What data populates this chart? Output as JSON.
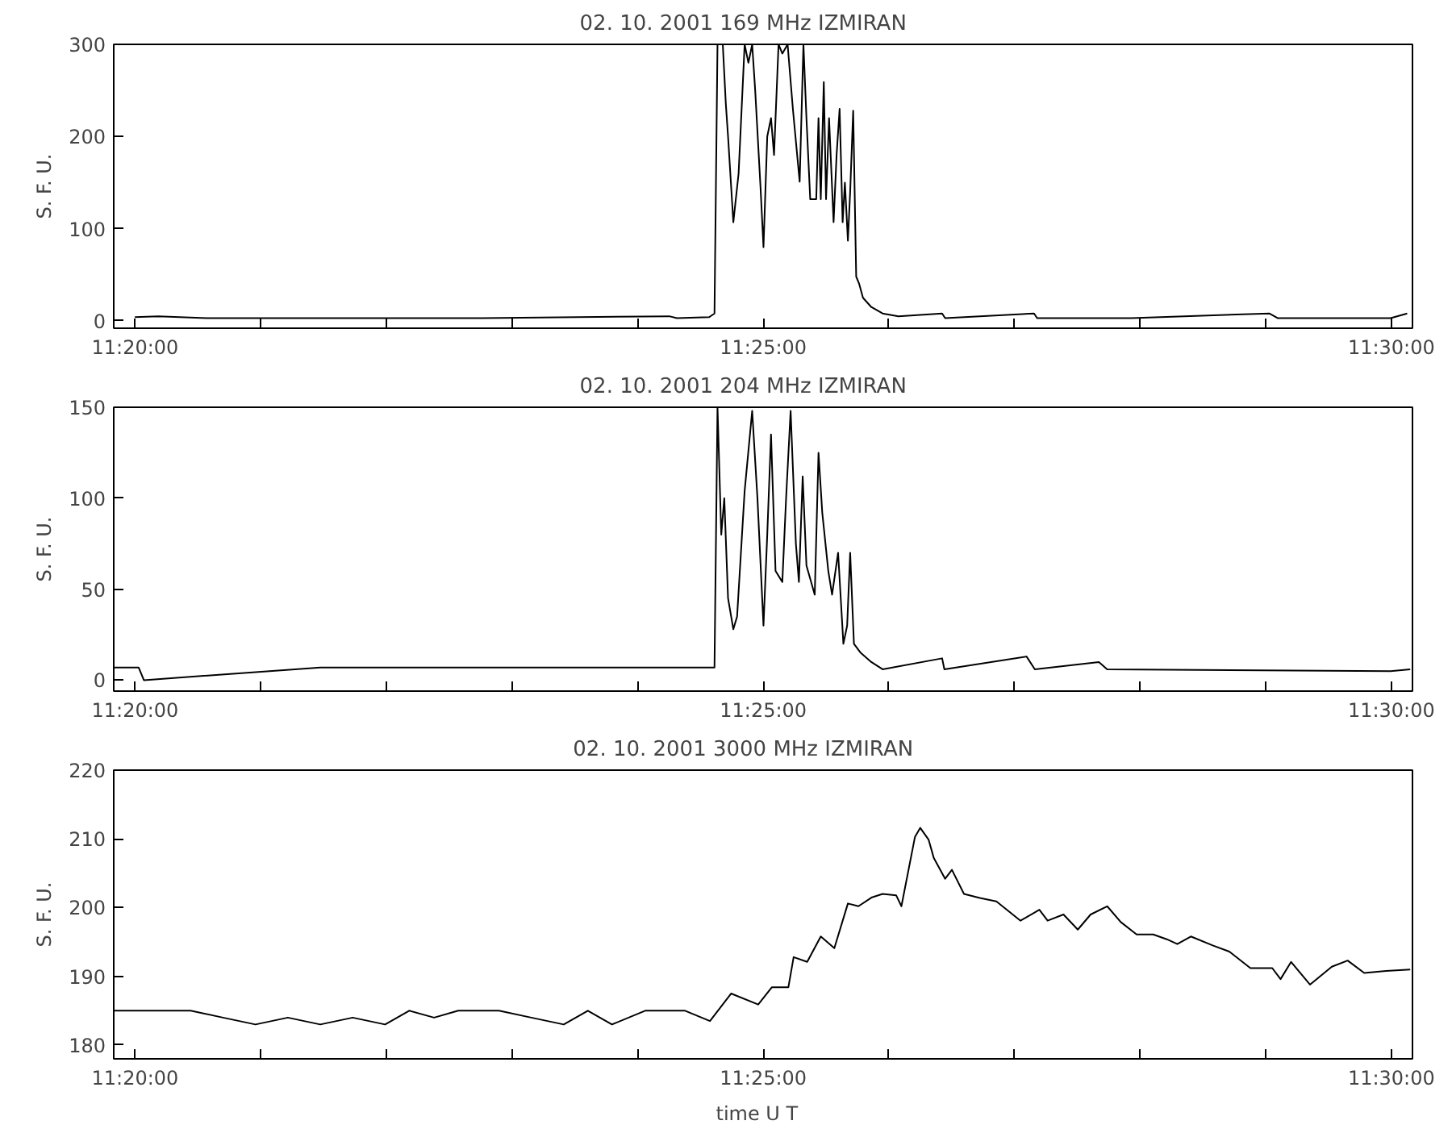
{
  "chart_data": [
    {
      "type": "line",
      "title": "02. 10. 2001    169 MHz    IZMIRAN",
      "ylabel": "S. F. U.",
      "xlim": [
        11.3305,
        11.5028
      ],
      "ylim": [
        -8,
        300
      ],
      "xticks": [
        {
          "value": 11.33333,
          "label": "11:20:00"
        },
        {
          "value": 11.35,
          "label": null
        },
        {
          "value": 11.36667,
          "label": null
        },
        {
          "value": 11.38333,
          "label": null
        },
        {
          "value": 11.4,
          "label": null
        },
        {
          "value": 11.41667,
          "label": "11:25:00"
        },
        {
          "value": 11.43333,
          "label": null
        },
        {
          "value": 11.45,
          "label": null
        },
        {
          "value": 11.46667,
          "label": null
        },
        {
          "value": 11.48333,
          "label": null
        },
        {
          "value": 11.5,
          "label": "11:30:00"
        }
      ],
      "yticks": [
        0,
        100,
        200,
        300
      ],
      "x": [
        11.3333,
        11.3364,
        11.3428,
        11.3579,
        11.3794,
        11.4042,
        11.4052,
        11.4095,
        11.4102,
        11.4106,
        11.4113,
        11.4117,
        11.412,
        11.4127,
        11.4134,
        11.4142,
        11.4147,
        11.4152,
        11.4156,
        11.4163,
        11.4167,
        11.4172,
        11.4177,
        11.4181,
        11.4187,
        11.4192,
        11.4199,
        11.4206,
        11.4215,
        11.422,
        11.4224,
        11.4229,
        11.4237,
        11.424,
        11.4243,
        11.4247,
        11.425,
        11.4254,
        11.426,
        11.4264,
        11.4268,
        11.4272,
        11.4275,
        11.4279,
        11.4282,
        11.4286,
        11.429,
        11.4294,
        11.4299,
        11.431,
        11.4325,
        11.4346,
        11.4404,
        11.4408,
        11.4526,
        11.453,
        11.4655,
        11.4838,
        11.4849,
        11.4999,
        11.5021
      ],
      "series": [
        {
          "color": "#000000",
          "values": [
            4,
            5,
            3,
            3,
            3,
            5,
            3,
            4,
            8,
            300,
            300,
            236,
            200,
            107,
            160,
            300,
            280,
            300,
            250,
            146,
            80,
            200,
            220,
            180,
            300,
            290,
            300,
            230,
            151,
            300,
            220,
            132,
            132,
            220,
            132,
            259,
            132,
            220,
            107,
            180,
            230,
            107,
            150,
            87,
            140,
            228,
            48,
            40,
            25,
            15,
            8,
            5,
            8,
            3,
            8,
            3,
            3,
            8,
            3,
            3,
            8
          ]
        }
      ]
    },
    {
      "type": "line",
      "title": "02. 10. 2001    204 MHz    IZMIRAN",
      "ylabel": "S. F. U.",
      "xlim": [
        11.3305,
        11.5028
      ],
      "ylim": [
        -6,
        150
      ],
      "xticks": [
        {
          "value": 11.33333,
          "label": "11:20:00"
        },
        {
          "value": 11.35,
          "label": null
        },
        {
          "value": 11.36667,
          "label": null
        },
        {
          "value": 11.38333,
          "label": null
        },
        {
          "value": 11.4,
          "label": null
        },
        {
          "value": 11.41667,
          "label": "11:25:00"
        },
        {
          "value": 11.43333,
          "label": null
        },
        {
          "value": 11.45,
          "label": null
        },
        {
          "value": 11.46667,
          "label": null
        },
        {
          "value": 11.48333,
          "label": null
        },
        {
          "value": 11.5,
          "label": "11:30:00"
        }
      ],
      "yticks": [
        0,
        50,
        100,
        150
      ],
      "x": [
        11.3305,
        11.3338,
        11.3345,
        11.3579,
        11.3794,
        11.4042,
        11.4095,
        11.4102,
        11.4106,
        11.4111,
        11.4115,
        11.412,
        11.4127,
        11.4132,
        11.4142,
        11.4152,
        11.4159,
        11.4167,
        11.4172,
        11.4177,
        11.4183,
        11.4192,
        11.4197,
        11.4203,
        11.421,
        11.4214,
        11.4219,
        11.4224,
        11.4235,
        11.424,
        11.4245,
        11.4253,
        11.4258,
        11.4266,
        11.4273,
        11.4278,
        11.4282,
        11.4287,
        11.4296,
        11.431,
        11.4325,
        11.4404,
        11.4407,
        11.4516,
        11.4527,
        11.4612,
        11.4623,
        11.4999,
        11.5025
      ],
      "series": [
        {
          "color": "#000000",
          "values": [
            7,
            7,
            0,
            7,
            7,
            7,
            7,
            7,
            150,
            80,
            100,
            45,
            28,
            35,
            104,
            148,
            100,
            30,
            80,
            135,
            60,
            54,
            100,
            148,
            75,
            54,
            112,
            63,
            47,
            125,
            92,
            60,
            47,
            70,
            20,
            30,
            70,
            20,
            15,
            10,
            6,
            12,
            6,
            13,
            6,
            10,
            6,
            5,
            6
          ]
        }
      ]
    },
    {
      "type": "line",
      "title": "02. 10. 2001    3000 MHz    IZMIRAN",
      "xlabel": "time   U T",
      "ylabel": "S. F. U.",
      "xlim": [
        11.3305,
        11.5028
      ],
      "ylim": [
        178,
        220
      ],
      "xticks": [
        {
          "value": 11.33333,
          "label": "11:20:00"
        },
        {
          "value": 11.35,
          "label": null
        },
        {
          "value": 11.36667,
          "label": null
        },
        {
          "value": 11.38333,
          "label": null
        },
        {
          "value": 11.4,
          "label": null
        },
        {
          "value": 11.41667,
          "label": "11:25:00"
        },
        {
          "value": 11.43333,
          "label": null
        },
        {
          "value": 11.45,
          "label": null
        },
        {
          "value": 11.46667,
          "label": null
        },
        {
          "value": 11.48333,
          "label": null
        },
        {
          "value": 11.5,
          "label": "11:30:00"
        }
      ],
      "yticks": [
        180,
        190,
        200,
        210,
        220
      ],
      "x": [
        11.3305,
        11.3342,
        11.3407,
        11.345,
        11.3493,
        11.3536,
        11.3579,
        11.3622,
        11.3665,
        11.3697,
        11.373,
        11.3762,
        11.3816,
        11.3859,
        11.3902,
        11.3934,
        11.3966,
        11.401,
        11.4042,
        11.4063,
        11.4096,
        11.4124,
        11.416,
        11.4178,
        11.42,
        11.4207,
        11.4225,
        11.4243,
        11.4261,
        11.4279,
        11.4293,
        11.4311,
        11.4325,
        11.4343,
        11.435,
        11.4368,
        11.4375,
        11.4386,
        11.4393,
        11.4408,
        11.4417,
        11.4433,
        11.4454,
        11.4476,
        11.4508,
        11.4533,
        11.4544,
        11.4565,
        11.4584,
        11.4601,
        11.4623,
        11.4641,
        11.4662,
        11.4684,
        11.4702,
        11.4716,
        11.4734,
        11.4763,
        11.4785,
        11.4813,
        11.4842,
        11.4853,
        11.4867,
        11.4892,
        11.4921,
        11.4942,
        11.4964,
        11.4993,
        11.5025
      ],
      "series": [
        {
          "color": "#000000",
          "values": [
            185,
            185,
            185,
            184,
            183,
            184,
            183,
            184,
            183,
            185,
            184,
            185,
            185,
            184,
            183,
            185,
            183,
            185,
            185,
            185,
            183.5,
            187.5,
            185.9,
            188.4,
            188.4,
            192.8,
            192.1,
            195.8,
            194.1,
            200.6,
            200.2,
            201.5,
            202,
            201.8,
            200.2,
            210.3,
            211.6,
            209.9,
            207.2,
            204.2,
            205.5,
            202,
            201.4,
            200.9,
            198.1,
            199.7,
            198.1,
            199,
            196.8,
            199,
            200.2,
            197.9,
            196.1,
            196.1,
            195.4,
            194.7,
            195.8,
            194.5,
            193.6,
            191.2,
            191.2,
            189.6,
            192.1,
            188.8,
            191.4,
            192.3,
            190.5,
            190.8,
            191
          ]
        }
      ]
    }
  ]
}
